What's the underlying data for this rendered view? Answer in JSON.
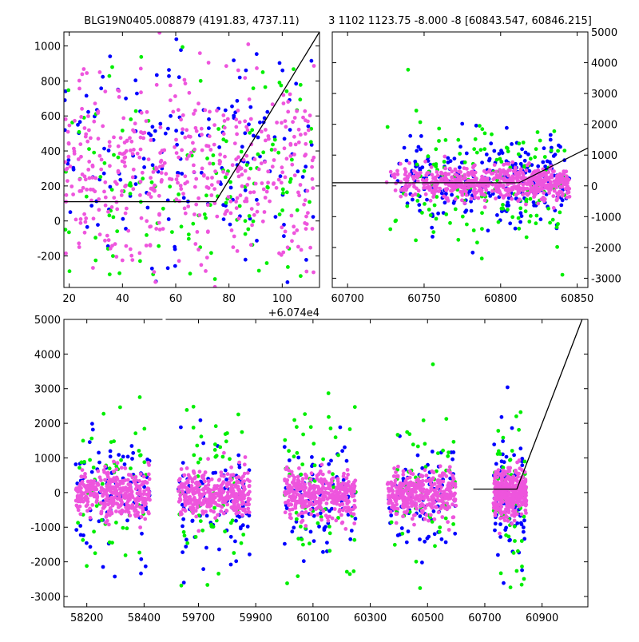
{
  "header": {
    "title_left": "BLG19N0405.008879 (4191.83, 4737.11)",
    "title_right": "3 1102 1123.75 -8.000 -8 [60843.547, 60846.215]"
  },
  "colors": {
    "blue": "#0000ff",
    "green": "#00ee00",
    "pink": "#ee55dd",
    "line": "#000000"
  },
  "chart_data": [
    {
      "name": "zoom-left",
      "type": "scatter",
      "x_offset_label": "+6.074e4",
      "xlim": [
        18,
        114
      ],
      "ylim": [
        -380,
        1080
      ],
      "xticks": [
        20,
        40,
        60,
        80,
        100
      ],
      "yticks": [
        -200,
        0,
        200,
        400,
        600,
        800,
        1000
      ],
      "model_line": [
        [
          18,
          110
        ],
        [
          75,
          110
        ],
        [
          114,
          1080
        ]
      ],
      "series": [
        {
          "color": "blue",
          "n": 170,
          "x_range": [
            18,
            112
          ],
          "y_center": 400,
          "y_spread": 320
        },
        {
          "color": "green",
          "n": 150,
          "x_range": [
            18,
            112
          ],
          "y_center": 250,
          "y_spread": 360
        },
        {
          "color": "pink",
          "n": 480,
          "x_range": [
            18,
            112
          ],
          "y_center": 300,
          "y_spread": 280
        }
      ]
    },
    {
      "name": "zoom-right",
      "type": "scatter",
      "xlim": [
        60690,
        60857
      ],
      "ylim": [
        -3300,
        5000
      ],
      "xticks": [
        60700,
        60750,
        60800,
        60850
      ],
      "yticks": [
        -3000,
        -2000,
        -1000,
        0,
        1000,
        2000,
        3000,
        4000,
        5000
      ],
      "model_line": [
        [
          60690,
          100
        ],
        [
          60812,
          100
        ],
        [
          60857,
          1230
        ]
      ],
      "series": [
        {
          "color": "blue",
          "n": 260,
          "x_range": [
            60725,
            60845
          ],
          "y_center": 150,
          "y_spread": 600
        },
        {
          "color": "green",
          "n": 160,
          "x_range": [
            60725,
            60845
          ],
          "y_center": 0,
          "y_spread": 1100
        },
        {
          "color": "pink",
          "n": 600,
          "x_range": [
            60725,
            60845
          ],
          "y_center": 120,
          "y_spread": 260
        }
      ]
    },
    {
      "name": "full-lightcurve",
      "type": "scatter",
      "ylim": [
        -3300,
        5000
      ],
      "yticks": [
        -3000,
        -2000,
        -1000,
        0,
        1000,
        2000,
        3000,
        4000,
        5000
      ],
      "segments": [
        {
          "xlim": [
            58120,
            58470
          ],
          "xticks": [
            58200,
            58400
          ],
          "data_range": [
            58160,
            58420
          ]
        },
        {
          "xlim": [
            59580,
            59950
          ],
          "xticks": [
            59700,
            59900
          ],
          "data_range": [
            59630,
            59880
          ]
        },
        {
          "xlim": [
            59950,
            60320
          ],
          "xticks": [
            60100,
            60300
          ],
          "data_range": [
            60000,
            60250
          ]
        },
        {
          "xlim": [
            60320,
            60690
          ],
          "xticks": [
            60500
          ],
          "data_range": [
            60360,
            60600
          ]
        },
        {
          "xlim": [
            60690,
            61060
          ],
          "xticks": [
            60700,
            60900
          ],
          "data_range": [
            60730,
            60845
          ]
        }
      ],
      "model_line": [
        [
          60660,
          100
        ],
        [
          60812,
          100
        ],
        [
          61040,
          5000
        ]
      ],
      "series": [
        {
          "color": "blue",
          "n": 420,
          "y_center": -150,
          "y_spread": 850
        },
        {
          "color": "green",
          "n": 300,
          "y_center": 0,
          "y_spread": 1300
        },
        {
          "color": "pink",
          "n": 1800,
          "y_center": -50,
          "y_spread": 330
        }
      ]
    }
  ]
}
